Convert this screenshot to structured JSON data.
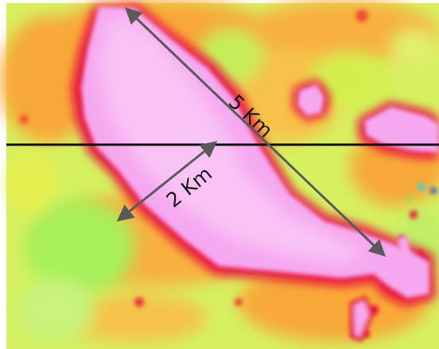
{
  "map": {
    "colors": {
      "background_low": "#c9f37a",
      "green_mid": "#a8ef5a",
      "yellow": "#f2f24a",
      "orange": "#f8a838",
      "red_edge": "#e8103c",
      "anomaly_fill": "#f5a8f0",
      "anomaly_core": "#f9c4f5",
      "profile_line": "#111111",
      "arrow": "#5a5a5a"
    },
    "labels": {
      "long_axis": "5 Km",
      "short_axis": "2 Km"
    }
  }
}
